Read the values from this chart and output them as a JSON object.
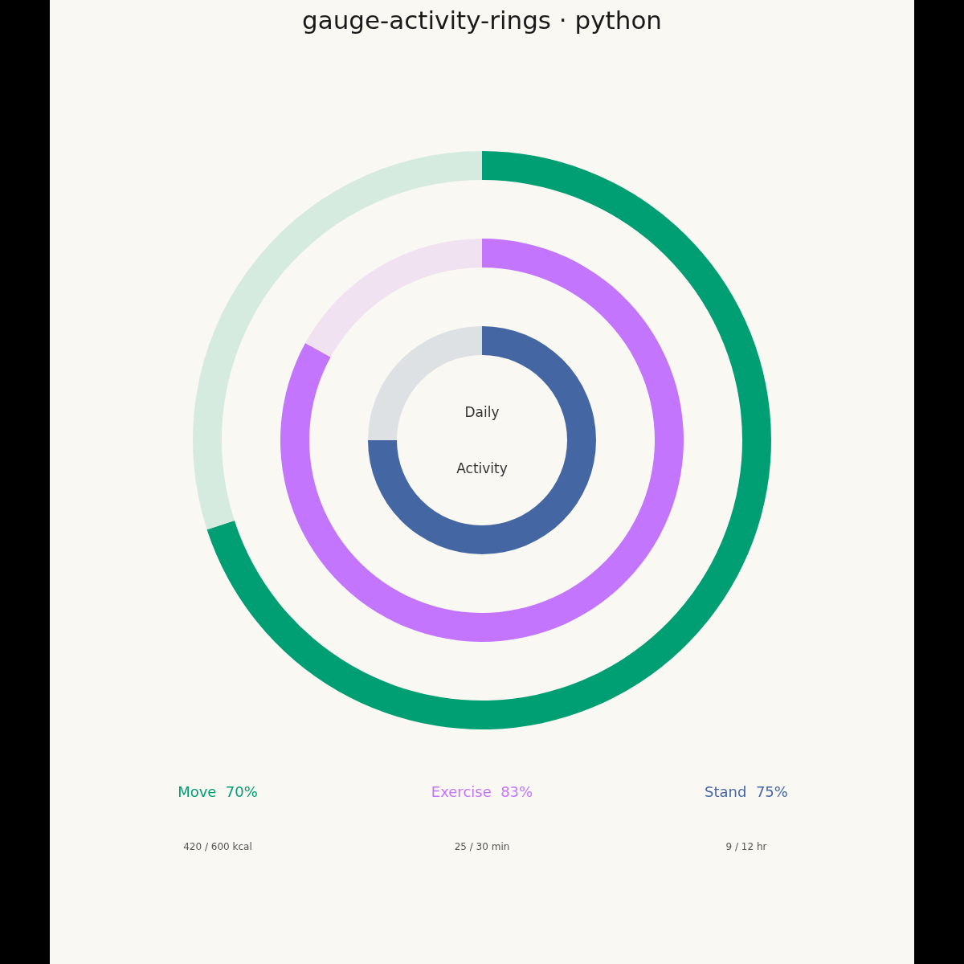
{
  "chart_data": [
    {
      "type": "donut",
      "title": "gauge-activity-rings · python",
      "categories": [
        null,
        null
      ],
      "series": [
        {
          "name": "Move",
          "color": "#009e73",
          "values": [
            70,
            30
          ],
          "colors": [
            "#009e73",
            "#d5ebe0"
          ],
          "value_labels": [
            "70%",
            null
          ]
        }
      ],
      "annotations": [
        "420 / 600 kcal"
      ]
    },
    {
      "type": "donut",
      "categories": [
        null,
        null
      ],
      "series": [
        {
          "name": "Exercise",
          "color": "#c475fd",
          "values": [
            83,
            17
          ],
          "colors": [
            "#c475fd",
            "#f1e2f2"
          ],
          "value_labels": [
            "83%",
            null
          ]
        }
      ],
      "annotations": [
        "25 / 30 min"
      ]
    },
    {
      "type": "donut",
      "categories": [
        null,
        null
      ],
      "series": [
        {
          "name": "Stand",
          "color": "#4467a4",
          "values": [
            75,
            25
          ],
          "colors": [
            "#4467a4",
            "#dee1e3"
          ],
          "value_labels": [
            "75%",
            null
          ]
        }
      ],
      "annotations": [
        "Daily",
        "Activity",
        "9 / 12 hr"
      ]
    }
  ]
}
